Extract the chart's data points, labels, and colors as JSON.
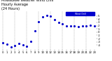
{
  "title": "Milwaukee Weather Wind Chill",
  "subtitle1": "Hourly Average",
  "subtitle2": "(24 Hours)",
  "hours": [
    0,
    1,
    2,
    3,
    4,
    5,
    6,
    7,
    8,
    9,
    10,
    11,
    12,
    13,
    14,
    15,
    16,
    17,
    18,
    19,
    20,
    21,
    22,
    23
  ],
  "wind_chill": [
    -3.2,
    -3.8,
    -4.5,
    -4.2,
    -3.5,
    -4.0,
    -4.3,
    -2.8,
    0.5,
    3.2,
    4.8,
    5.2,
    4.9,
    3.8,
    3.0,
    2.5,
    2.0,
    2.0,
    1.8,
    1.6,
    1.8,
    2.0,
    2.2,
    2.0
  ],
  "dot_color": "#0000cc",
  "bg_color": "#ffffff",
  "grid_color": "#999999",
  "yticks": [
    -4,
    -3,
    -2,
    -1,
    0,
    1,
    2,
    3,
    4,
    5
  ],
  "ylim": [
    -5.5,
    6.5
  ],
  "legend_color": "#0000cc",
  "legend_label": "Wind Chill",
  "vgrid_positions": [
    0,
    3,
    6,
    9,
    12,
    15,
    18,
    21
  ],
  "title_fontsize": 3.5,
  "tick_fontsize": 2.8,
  "dot_size": 1.5
}
